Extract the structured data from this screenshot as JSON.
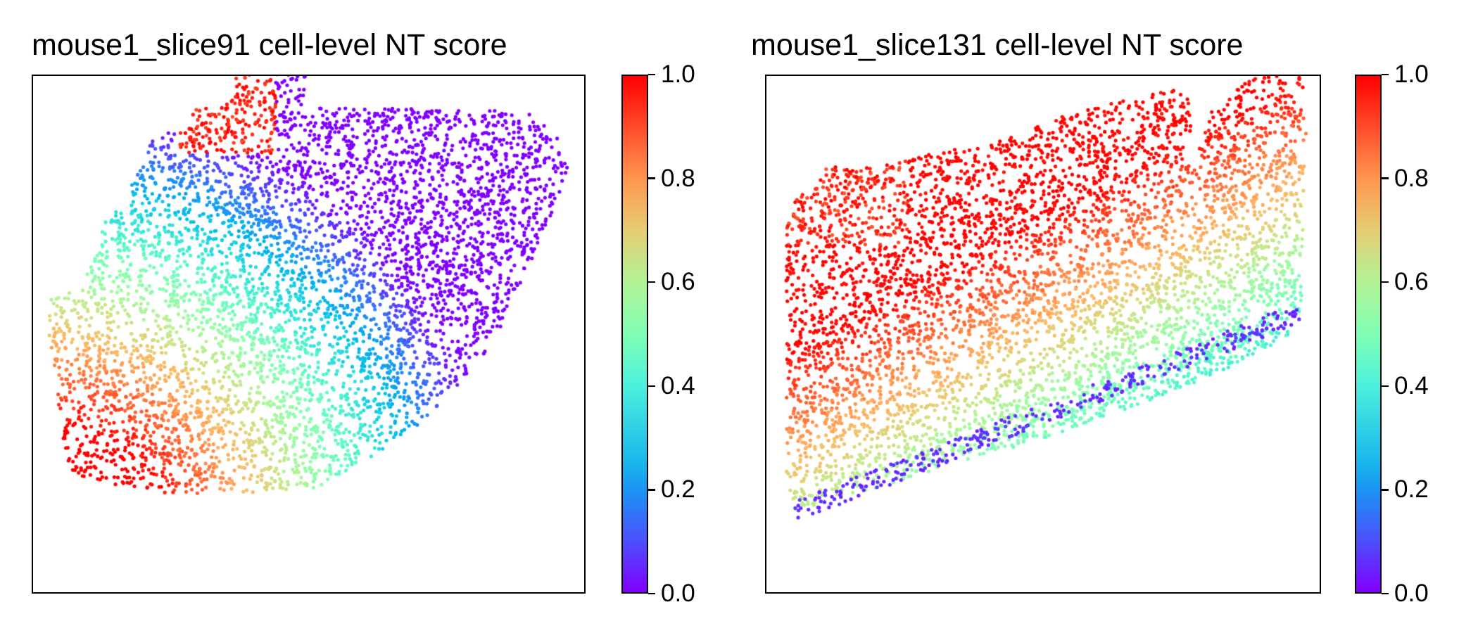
{
  "chart_data": [
    {
      "type": "scatter",
      "title": "mouse1_slice91 cell-level NT score",
      "xlabel": "",
      "ylabel": "",
      "colormap": "rainbow",
      "colorbar": {
        "range": [
          0.0,
          1.0
        ],
        "ticks": [
          "0.0",
          "0.2",
          "0.4",
          "0.6",
          "0.8",
          "1.0"
        ]
      },
      "color_stops": [
        "#8000ff",
        "#1996f3",
        "#4df0dd",
        "#b2f396",
        "#ff964f",
        "#ff0000"
      ],
      "axes_visible": false,
      "point_count_approx": 5000
    },
    {
      "type": "scatter",
      "title": "mouse1_slice131 cell-level NT score",
      "xlabel": "",
      "ylabel": "",
      "colormap": "rainbow",
      "colorbar": {
        "range": [
          0.0,
          1.0
        ],
        "ticks": [
          "0.0",
          "0.2",
          "0.4",
          "0.6",
          "0.8",
          "1.0"
        ]
      },
      "color_stops": [
        "#8000ff",
        "#1996f3",
        "#4df0dd",
        "#b2f396",
        "#ff964f",
        "#ff0000"
      ],
      "axes_visible": false,
      "point_count_approx": 5000
    }
  ]
}
